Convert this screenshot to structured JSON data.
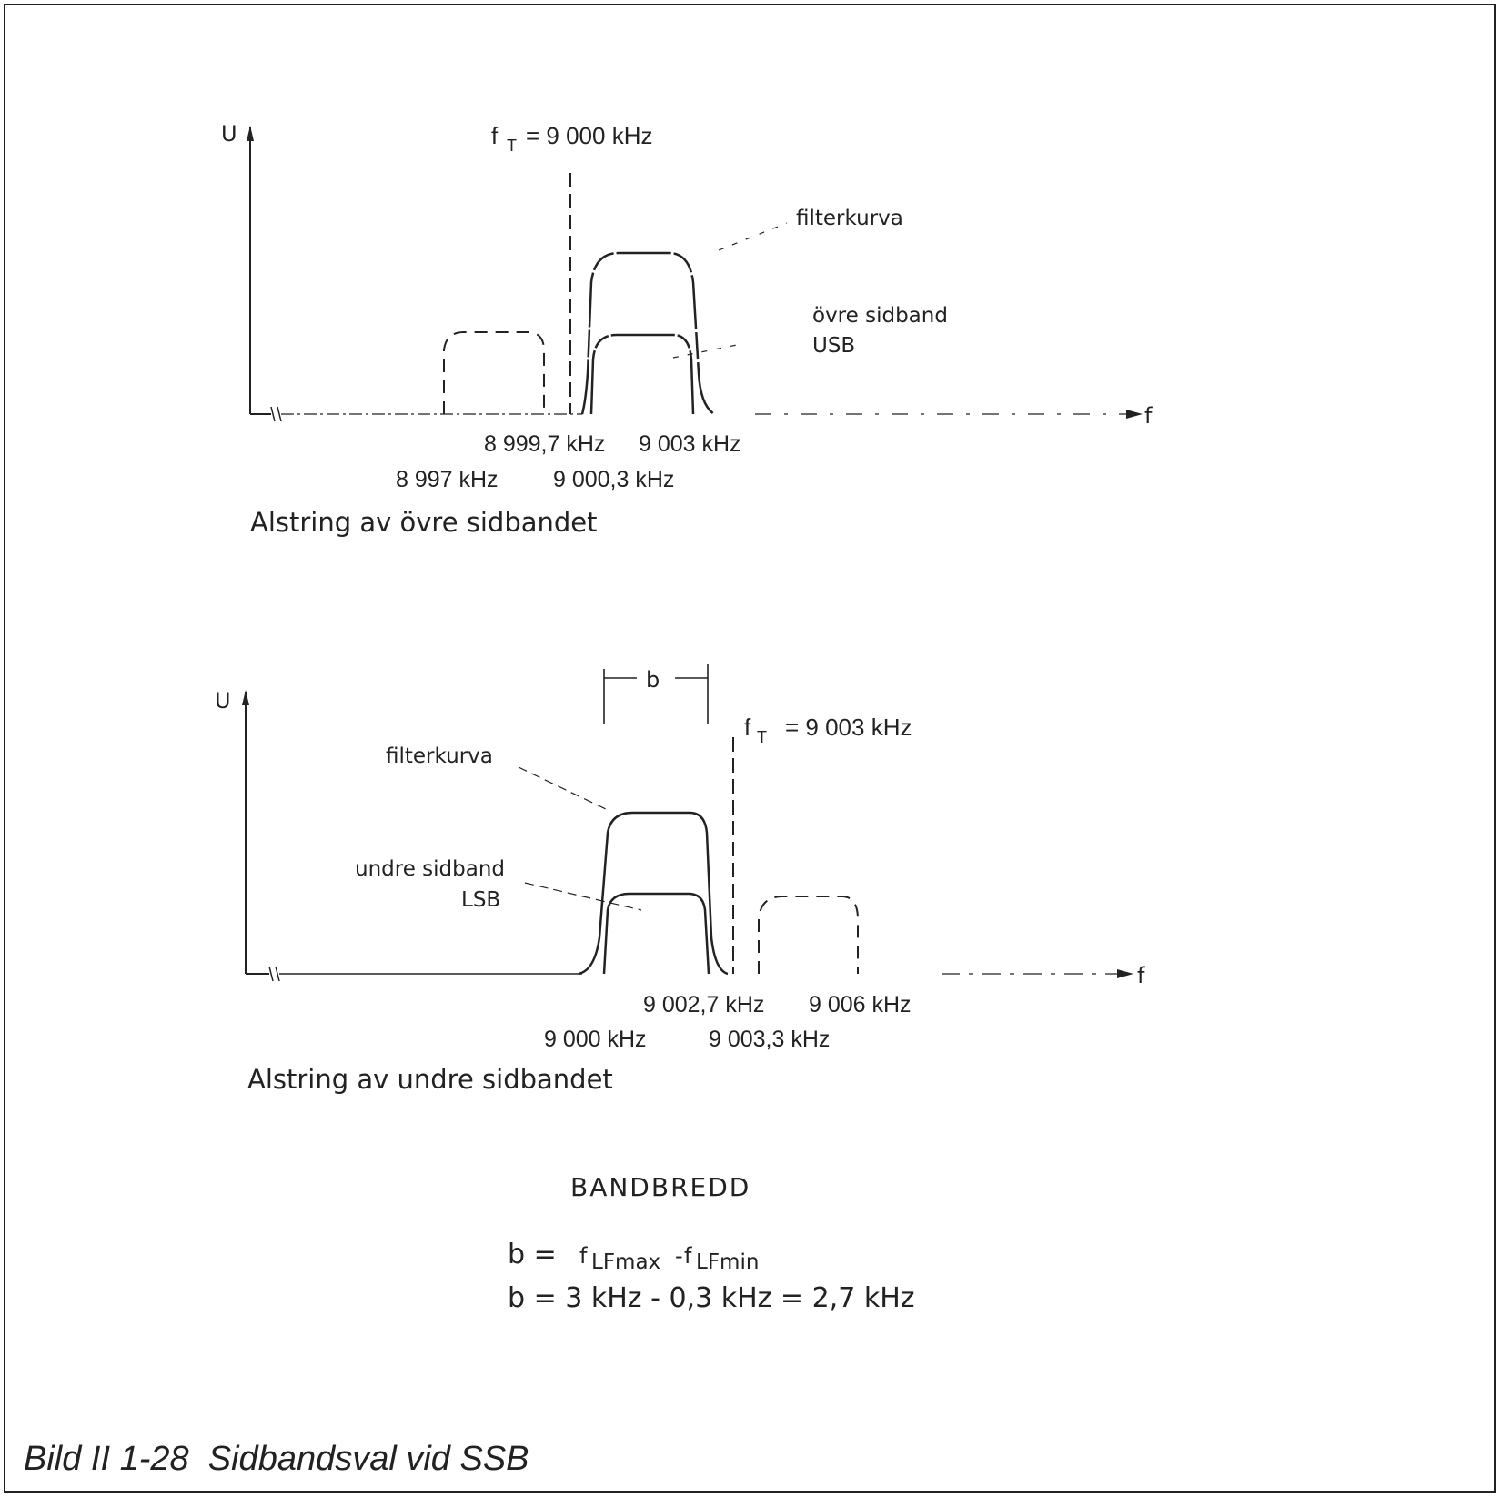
{
  "upper_diagram": {
    "y_axis_label": "U",
    "x_axis_label": "f",
    "carrier_label": "f",
    "carrier_sub": "T",
    "carrier_value": "= 9 000 kHz",
    "filter_label": "filterkurva",
    "sideband_label_1": "övre sidband",
    "sideband_label_2": "USB",
    "freq_1": "8 999,7 kHz",
    "freq_2": "9 003 kHz",
    "freq_3": "8 997 kHz",
    "freq_4": "9 000,3 kHz",
    "caption": "Alstring av övre sidbandet"
  },
  "lower_diagram": {
    "y_axis_label": "U",
    "x_axis_label": "f",
    "bandwidth_label": "b",
    "carrier_label": "f",
    "carrier_sub": "T",
    "carrier_value": "= 9 003 kHz",
    "filter_label": "filterkurva",
    "sideband_label_1": "undre sidband",
    "sideband_label_2": "LSB",
    "freq_1": "9 002,7 kHz",
    "freq_2": "9 006 kHz",
    "freq_3": "9 000 kHz",
    "freq_4": "9 003,3 kHz",
    "caption": "Alstring av undre sidbandet"
  },
  "bandwidth": {
    "heading": "BANDBREDD",
    "eq1_lhs": "b =",
    "eq1_f1": "f",
    "eq1_sub1": "LFmax",
    "eq1_minus": "-",
    "eq1_f2": "f",
    "eq1_sub2": "LFmin",
    "eq2": "b = 3 kHz - 0,3 kHz = 2,7 kHz"
  },
  "figure_caption": "Bild II 1-28  Sidbandsval vid SSB"
}
